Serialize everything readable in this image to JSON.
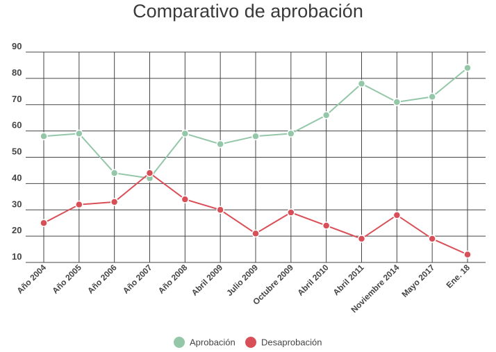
{
  "chart_data": {
    "type": "line",
    "title": "Comparativo de aprobación",
    "xlabel": "",
    "ylabel": "",
    "categories": [
      "Año 2004",
      "Año 2005",
      "Año 2006",
      "Año 2007",
      "Año 2008",
      "Abril 2009",
      "Julio 2009",
      "Octubre 2009",
      "Abril 2010",
      "Abril 2011",
      "Noviembre 2014",
      "Mayo 2017",
      "Ene. 18"
    ],
    "yticks": [
      10,
      20,
      30,
      40,
      50,
      60,
      70,
      80,
      90
    ],
    "ylim": [
      10,
      90
    ],
    "grid": true,
    "legend_position": "bottom",
    "series": [
      {
        "name": "Aprobación",
        "color": "#93c7a8",
        "values": [
          58,
          59,
          44,
          42,
          59,
          55,
          58,
          59,
          66,
          78,
          71,
          73,
          84
        ]
      },
      {
        "name": "Desaprobación",
        "color": "#d94f57",
        "values": [
          25,
          32,
          33,
          44,
          34,
          30,
          21,
          29,
          24,
          19,
          28,
          19,
          13
        ]
      }
    ]
  }
}
